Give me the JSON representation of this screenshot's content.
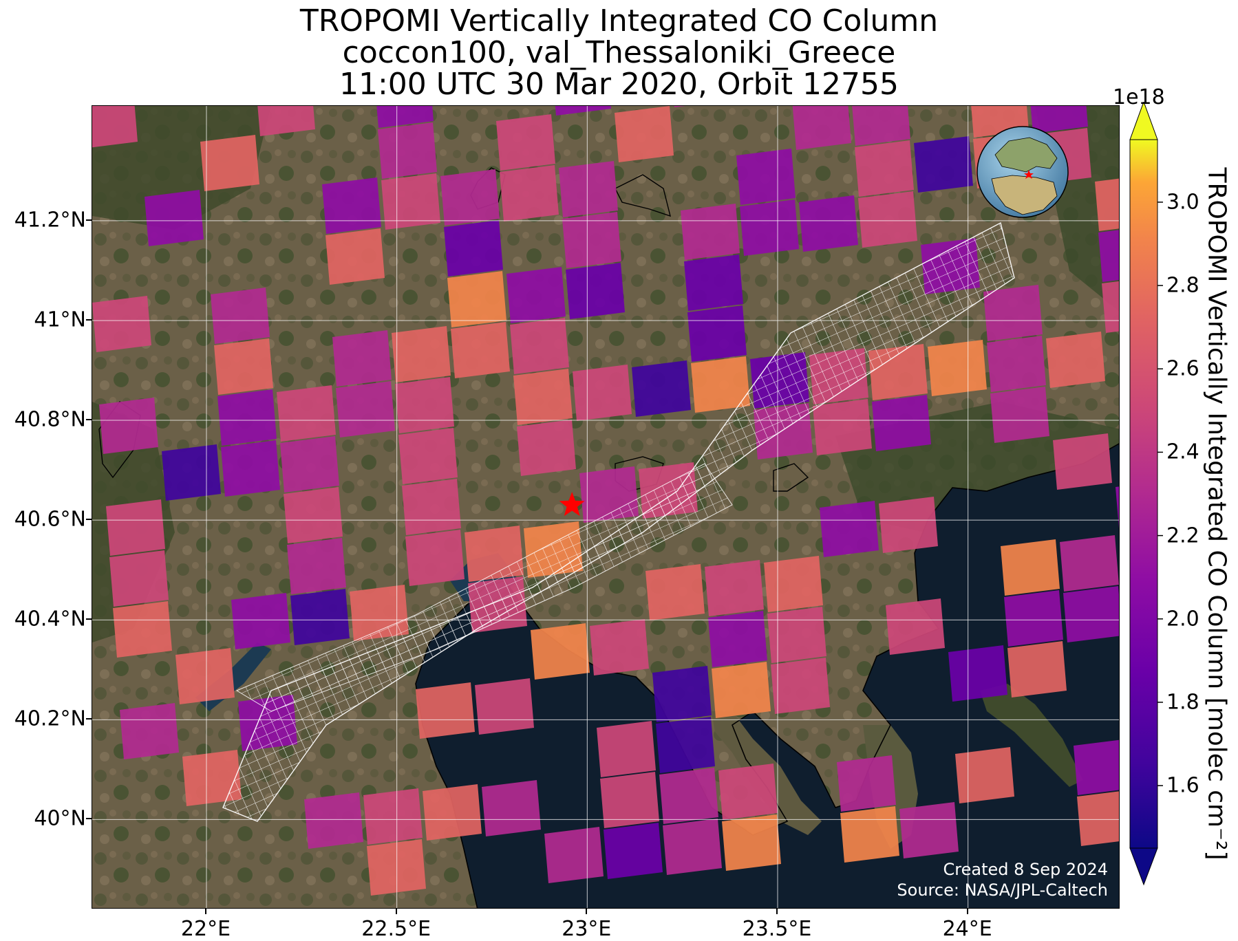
{
  "title": {
    "line1": "TROPOMI Vertically Integrated CO Column",
    "line2": "coccon100, val_Thessaloniki_Greece",
    "line3": "11:00 UTC 30 Mar 2020, Orbit 12755"
  },
  "map": {
    "lon_range": [
      21.7,
      24.4
    ],
    "lat_range": [
      39.82,
      41.43
    ],
    "lat_ticks": [
      {
        "value": 41.2,
        "label": "41.2°N"
      },
      {
        "value": 41.0,
        "label": "41°N"
      },
      {
        "value": 40.8,
        "label": "40.8°N"
      },
      {
        "value": 40.6,
        "label": "40.6°N"
      },
      {
        "value": 40.4,
        "label": "40.4°N"
      },
      {
        "value": 40.2,
        "label": "40.2°N"
      },
      {
        "value": 40.0,
        "label": "40°N"
      }
    ],
    "lon_ticks": [
      {
        "value": 22.0,
        "label": "22°E"
      },
      {
        "value": 22.5,
        "label": "22.5°E"
      },
      {
        "value": 23.0,
        "label": "23°E"
      },
      {
        "value": 23.5,
        "label": "23.5°E"
      },
      {
        "value": 24.0,
        "label": "24°E"
      }
    ],
    "grid": true,
    "site_marker": {
      "name": "Thessaloniki",
      "lon": 22.96,
      "lat": 40.63,
      "color": "#ff0000",
      "icon": "star-icon"
    },
    "inset_globe": {
      "position": "top-right",
      "marker_color": "#ff0000"
    },
    "credit": {
      "created": "Created 8 Sep 2024",
      "source": "Source: NASA/JPL-Caltech"
    }
  },
  "colorbar": {
    "colormap": "plasma",
    "label": "TROPOMI Vertically Integrated CO Column [molec cm⁻²]",
    "exponent": "1e18",
    "range": [
      1.45,
      3.15
    ],
    "extend": "both",
    "ticks": [
      {
        "value": 1.6,
        "label": "1.6"
      },
      {
        "value": 1.8,
        "label": "1.8"
      },
      {
        "value": 2.0,
        "label": "2.0"
      },
      {
        "value": 2.2,
        "label": "2.2"
      },
      {
        "value": 2.4,
        "label": "2.4"
      },
      {
        "value": 2.6,
        "label": "2.6"
      },
      {
        "value": 2.8,
        "label": "2.8"
      },
      {
        "value": 3.0,
        "label": "3.0"
      }
    ]
  },
  "colors": {
    "sea": "#0f1e2e",
    "land": "#6b6048",
    "forest": "#3f4a2c",
    "coastline": "#000000",
    "grid": "#ffffff",
    "footprint": "#ffffff"
  }
}
